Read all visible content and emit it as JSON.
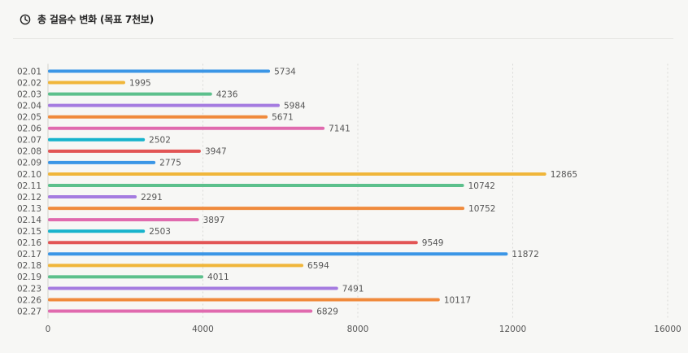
{
  "header": {
    "icon": "clock-chart-icon",
    "title": "총 걸음수 변화 (목표 7천보)"
  },
  "chart_data": {
    "type": "bar",
    "orientation": "horizontal",
    "title": "총 걸음수 변화 (목표 7천보)",
    "xlabel": "",
    "ylabel": "",
    "xlim": [
      0,
      16000
    ],
    "xticks": [
      0,
      4000,
      8000,
      12000,
      16000
    ],
    "grid": "vertical-dotted",
    "categories": [
      "02.01",
      "02.02",
      "02.03",
      "02.04",
      "02.05",
      "02.06",
      "02.07",
      "02.08",
      "02.09",
      "02.10",
      "02.11",
      "02.12",
      "02.13",
      "02.14",
      "02.15",
      "02.16",
      "02.17",
      "02.18",
      "02.19",
      "02.23",
      "02.26",
      "02.27"
    ],
    "values": [
      5734,
      1995,
      4236,
      5984,
      5671,
      7141,
      2502,
      3947,
      2775,
      12865,
      10742,
      2291,
      10752,
      3897,
      2503,
      9549,
      11872,
      6594,
      4011,
      7491,
      10117,
      6829
    ],
    "colors": [
      "#3b96e6",
      "#f0b63a",
      "#5cc08c",
      "#a57be0",
      "#f08a3c",
      "#e06aae",
      "#17b3cc",
      "#e25555"
    ]
  }
}
